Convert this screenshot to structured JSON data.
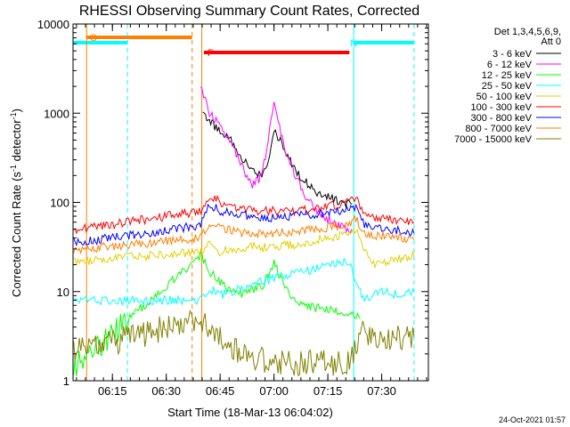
{
  "chart_data": {
    "type": "line",
    "title": "RHESSI Observing Summary Count Rates, Corrected",
    "xlabel": "Start Time (18-Mar-13 06:04:02)",
    "ylabel_main": "Corrected Count Rate (s",
    "ylabel_sup1": "-1",
    "ylabel_mid": " detector",
    "ylabel_sup2": "-1",
    "ylabel_end": ")",
    "xlim": [
      6.0672,
      7.7167
    ],
    "ylim": [
      1,
      10000
    ],
    "yscale": "log",
    "x_unit": "hours UT",
    "x_ticks": [
      {
        "v": 6.25,
        "label": "06:15"
      },
      {
        "v": 6.5,
        "label": "06:30"
      },
      {
        "v": 6.75,
        "label": "06:45"
      },
      {
        "v": 7.0,
        "label": "07:00"
      },
      {
        "v": 7.25,
        "label": "07:15"
      },
      {
        "v": 7.5,
        "label": "07:30"
      }
    ],
    "y_ticks": [
      {
        "v": 1,
        "label": "1"
      },
      {
        "v": 10,
        "label": "10"
      },
      {
        "v": 100,
        "label": "100"
      },
      {
        "v": 1000,
        "label": "1000"
      },
      {
        "v": 10000,
        "label": "10000"
      }
    ],
    "legend_header": [
      "Det 1,3,4,5,6,9,",
      "Att 0"
    ],
    "footer_date": "24-Oct-2021 01:57",
    "flags": [
      {
        "code": "S",
        "color": "#ff7f00",
        "start": 6.13,
        "end": 6.62
      },
      {
        "code": "N",
        "color": "#00ffff",
        "start": 6.0672,
        "end": 6.32
      },
      {
        "code": "N",
        "color": "#00ffff",
        "start": 7.37,
        "end": 7.65
      },
      {
        "code": "F",
        "color": "#ff0000",
        "start": 6.675,
        "end": 7.35
      }
    ],
    "markers": [
      {
        "x": 6.0672,
        "color": "#00ffff",
        "style": "solid"
      },
      {
        "x": 6.32,
        "color": "#00ffff",
        "style": "dashed"
      },
      {
        "x": 6.13,
        "color": "#ff7f00",
        "style": "solid"
      },
      {
        "x": 6.62,
        "color": "#ff7f00",
        "style": "dashed"
      },
      {
        "x": 6.665,
        "color": "#ff7f00",
        "style": "solid"
      },
      {
        "x": 7.37,
        "color": "#00ffff",
        "style": "solid"
      },
      {
        "x": 7.65,
        "color": "#00ffff",
        "style": "dashed"
      }
    ],
    "series": [
      {
        "name": "3 - 6 keV",
        "color": "#000000",
        "points": [
          [
            6.67,
            950
          ],
          [
            6.7,
            800
          ],
          [
            6.75,
            650
          ],
          [
            6.8,
            500
          ],
          [
            6.85,
            320
          ],
          [
            6.9,
            220
          ],
          [
            6.95,
            210
          ],
          [
            6.98,
            350
          ],
          [
            7.0,
            650
          ],
          [
            7.03,
            500
          ],
          [
            7.07,
            300
          ],
          [
            7.12,
            200
          ],
          [
            7.18,
            140
          ],
          [
            7.22,
            120
          ],
          [
            7.27,
            110
          ],
          [
            7.32,
            100
          ],
          [
            7.36,
            95
          ]
        ]
      },
      {
        "name": "6 - 12 keV",
        "color": "#ff00ff",
        "points": [
          [
            6.66,
            1800
          ],
          [
            6.68,
            1400
          ],
          [
            6.7,
            1000
          ],
          [
            6.75,
            750
          ],
          [
            6.8,
            500
          ],
          [
            6.85,
            250
          ],
          [
            6.9,
            160
          ],
          [
            6.93,
            180
          ],
          [
            6.96,
            300
          ],
          [
            6.98,
            700
          ],
          [
            7.0,
            1200
          ],
          [
            7.02,
            800
          ],
          [
            7.05,
            400
          ],
          [
            7.1,
            200
          ],
          [
            7.15,
            110
          ],
          [
            7.2,
            80
          ],
          [
            7.25,
            65
          ],
          [
            7.3,
            55
          ],
          [
            7.36,
            50
          ]
        ]
      },
      {
        "name": "12 - 25 keV",
        "color": "#00ff00",
        "points": [
          [
            6.07,
            1.4
          ],
          [
            6.07,
            1.4
          ],
          [
            6.66,
            25
          ],
          [
            6.7,
            17
          ],
          [
            6.75,
            13
          ],
          [
            6.8,
            10
          ],
          [
            6.85,
            9.5
          ],
          [
            6.9,
            10
          ],
          [
            6.95,
            12
          ],
          [
            6.98,
            16
          ],
          [
            7.0,
            22
          ],
          [
            7.02,
            16
          ],
          [
            7.05,
            11
          ],
          [
            7.1,
            8
          ],
          [
            7.15,
            7
          ],
          [
            7.2,
            6.5
          ],
          [
            7.25,
            6.5
          ],
          [
            7.3,
            6
          ],
          [
            7.35,
            6
          ],
          [
            7.4,
            5
          ]
        ]
      },
      {
        "name": "25 - 50 keV",
        "color": "#00ffff",
        "points": [
          [
            6.07,
            8
          ],
          [
            6.11,
            8
          ],
          [
            6.66,
            8
          ],
          [
            6.7,
            11
          ],
          [
            6.75,
            9
          ],
          [
            6.8,
            10
          ],
          [
            6.85,
            11
          ],
          [
            6.9,
            12
          ],
          [
            6.95,
            13
          ],
          [
            7.0,
            14
          ],
          [
            7.05,
            15
          ],
          [
            7.1,
            16
          ],
          [
            7.15,
            17
          ],
          [
            7.2,
            18
          ],
          [
            7.25,
            20
          ],
          [
            7.3,
            21
          ],
          [
            7.35,
            22
          ],
          [
            7.38,
            12
          ],
          [
            7.42,
            8
          ],
          [
            7.5,
            10
          ],
          [
            7.6,
            9
          ],
          [
            7.65,
            10
          ]
        ]
      },
      {
        "name": "50 - 100 keV",
        "color": "#e0d000",
        "points": [
          [
            6.07,
            22
          ],
          [
            6.11,
            22
          ],
          [
            6.66,
            28
          ],
          [
            6.7,
            33
          ],
          [
            6.75,
            28
          ],
          [
            6.8,
            30
          ],
          [
            6.85,
            31
          ],
          [
            6.9,
            32
          ],
          [
            6.95,
            31
          ],
          [
            7.0,
            32
          ],
          [
            7.05,
            33
          ],
          [
            7.1,
            34
          ],
          [
            7.15,
            36
          ],
          [
            7.2,
            38
          ],
          [
            7.25,
            40
          ],
          [
            7.3,
            42
          ],
          [
            7.35,
            46
          ],
          [
            7.38,
            50
          ],
          [
            7.45,
            20
          ],
          [
            7.55,
            22
          ],
          [
            7.65,
            25
          ]
        ]
      },
      {
        "name": "100 - 300 keV",
        "color": "#ff0000",
        "points": [
          [
            6.07,
            50
          ],
          [
            6.11,
            50
          ],
          [
            6.66,
            80
          ],
          [
            6.7,
            120
          ],
          [
            6.75,
            100
          ],
          [
            6.8,
            90
          ],
          [
            6.85,
            85
          ],
          [
            6.9,
            80
          ],
          [
            6.95,
            80
          ],
          [
            7.0,
            80
          ],
          [
            7.05,
            80
          ],
          [
            7.1,
            80
          ],
          [
            7.15,
            82
          ],
          [
            7.2,
            85
          ],
          [
            7.25,
            90
          ],
          [
            7.3,
            95
          ],
          [
            7.35,
            100
          ],
          [
            7.38,
            115
          ],
          [
            7.42,
            70
          ],
          [
            7.5,
            65
          ],
          [
            7.6,
            62
          ],
          [
            7.65,
            60
          ]
        ]
      },
      {
        "name": "300 - 800 keV",
        "color": "#0000ff",
        "points": [
          [
            6.07,
            36
          ],
          [
            6.11,
            36
          ],
          [
            6.66,
            55
          ],
          [
            6.7,
            95
          ],
          [
            6.75,
            80
          ],
          [
            6.8,
            75
          ],
          [
            6.85,
            72
          ],
          [
            6.9,
            70
          ],
          [
            6.95,
            68
          ],
          [
            7.0,
            68
          ],
          [
            7.05,
            68
          ],
          [
            7.1,
            70
          ],
          [
            7.15,
            72
          ],
          [
            7.2,
            75
          ],
          [
            7.25,
            78
          ],
          [
            7.3,
            80
          ],
          [
            7.35,
            85
          ],
          [
            7.38,
            90
          ],
          [
            7.42,
            55
          ],
          [
            7.5,
            50
          ],
          [
            7.6,
            48
          ],
          [
            7.65,
            45
          ]
        ]
      },
      {
        "name": "800 - 7000 keV",
        "color": "#ff7f00",
        "points": [
          [
            6.07,
            30
          ],
          [
            6.11,
            30
          ],
          [
            6.66,
            40
          ],
          [
            6.7,
            58
          ],
          [
            6.75,
            52
          ],
          [
            6.8,
            48
          ],
          [
            6.85,
            46
          ],
          [
            6.9,
            45
          ],
          [
            6.95,
            44
          ],
          [
            7.0,
            45
          ],
          [
            7.05,
            46
          ],
          [
            7.1,
            47
          ],
          [
            7.15,
            48
          ],
          [
            7.2,
            50
          ],
          [
            7.25,
            52
          ],
          [
            7.3,
            55
          ],
          [
            7.35,
            58
          ],
          [
            7.38,
            65
          ],
          [
            7.42,
            45
          ],
          [
            7.5,
            42
          ],
          [
            7.6,
            40
          ],
          [
            7.65,
            38
          ]
        ]
      },
      {
        "name": "7000 - 15000 keV",
        "color": "#808000",
        "points": [
          [
            6.07,
            2.2
          ],
          [
            6.11,
            2.2
          ],
          [
            6.66,
            5
          ],
          [
            6.7,
            4
          ],
          [
            6.75,
            3.2
          ],
          [
            6.8,
            2.5
          ],
          [
            6.85,
            2
          ],
          [
            6.9,
            1.8
          ],
          [
            6.95,
            1.7
          ],
          [
            7.0,
            1.7
          ],
          [
            7.05,
            1.6
          ],
          [
            7.1,
            1.6
          ],
          [
            7.15,
            1.6
          ],
          [
            7.2,
            1.6
          ],
          [
            7.25,
            1.6
          ],
          [
            7.3,
            1.6
          ],
          [
            7.35,
            1.6
          ],
          [
            7.4,
            3.5
          ],
          [
            7.5,
            3.2
          ],
          [
            7.6,
            3
          ],
          [
            7.65,
            3.1
          ]
        ]
      }
    ]
  }
}
